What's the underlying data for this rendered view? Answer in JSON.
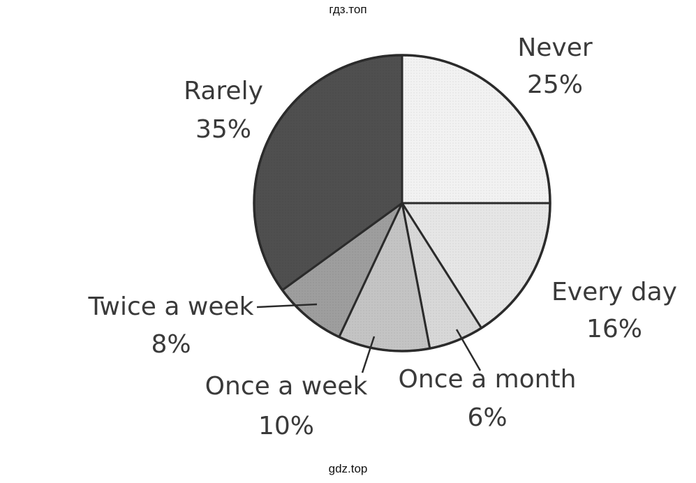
{
  "watermark_top": "гдз.топ",
  "watermark_bottom": "gdz.top",
  "chart_data": {
    "type": "pie",
    "unit": "%",
    "slices": [
      {
        "label": "Never",
        "value": 25,
        "value_label": "25%",
        "color": "#f2f2f2"
      },
      {
        "label": "Every day",
        "value": 16,
        "value_label": "16%",
        "color": "#e6e6e6"
      },
      {
        "label": "Once a month",
        "value": 6,
        "value_label": "6%",
        "color": "#d8d8d8"
      },
      {
        "label": "Once a week",
        "value": 10,
        "value_label": "10%",
        "color": "#c4c4c4"
      },
      {
        "label": "Twice a week",
        "value": 8,
        "value_label": "8%",
        "color": "#9e9e9e"
      },
      {
        "label": "Rarely",
        "value": 35,
        "value_label": "35%",
        "color": "#4f4f4f"
      }
    ]
  }
}
